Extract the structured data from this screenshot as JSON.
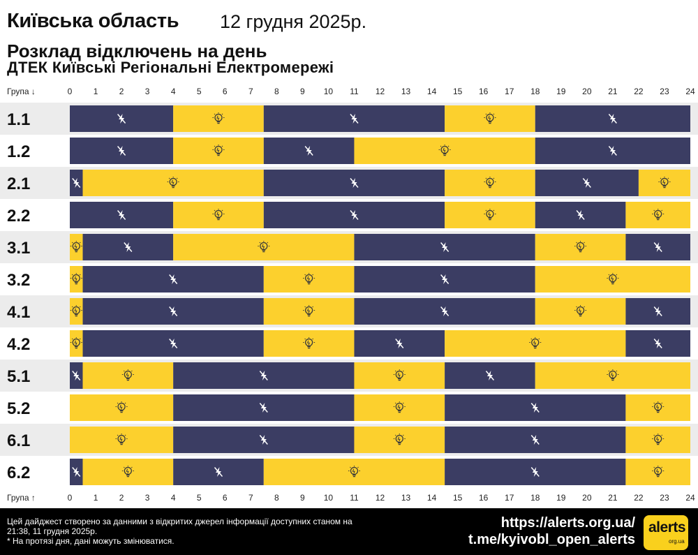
{
  "header": {
    "region": "Київська область",
    "date": "12 грудня 2025р.",
    "subtitle": "Розклад відключень на день",
    "company": "ДТЕК Київські Регіональні Електромережі"
  },
  "colors": {
    "off": "#3b3d63",
    "on": "#fcd02d",
    "row_odd": "#ececec",
    "row_even": "#ffffff"
  },
  "icons": {
    "off": "lightning-off-icon",
    "on": "lightbulb-icon"
  },
  "chart_data": {
    "type": "table",
    "x_range": [
      0,
      24
    ],
    "x_ticks": [
      "0",
      "1",
      "2",
      "3",
      "4",
      "5",
      "6",
      "7",
      "8",
      "9",
      "10",
      "11",
      "12",
      "13",
      "14",
      "15",
      "16",
      "17",
      "18",
      "19",
      "20",
      "21",
      "22",
      "23",
      "24"
    ],
    "top_header": "Група ↓",
    "bottom_header": "Група ↑",
    "groups": [
      {
        "name": "1.1",
        "segments": [
          [
            0,
            4,
            "off"
          ],
          [
            4,
            7.5,
            "on"
          ],
          [
            7.5,
            14.5,
            "off"
          ],
          [
            14.5,
            18,
            "on"
          ],
          [
            18,
            24,
            "off"
          ]
        ]
      },
      {
        "name": "1.2",
        "segments": [
          [
            0,
            4,
            "off"
          ],
          [
            4,
            7.5,
            "on"
          ],
          [
            7.5,
            11,
            "off"
          ],
          [
            11,
            18,
            "on"
          ],
          [
            18,
            24,
            "off"
          ]
        ]
      },
      {
        "name": "2.1",
        "segments": [
          [
            0,
            0.5,
            "off"
          ],
          [
            0.5,
            7.5,
            "on"
          ],
          [
            7.5,
            14.5,
            "off"
          ],
          [
            14.5,
            18,
            "on"
          ],
          [
            18,
            22,
            "off"
          ],
          [
            22,
            24,
            "on"
          ]
        ]
      },
      {
        "name": "2.2",
        "segments": [
          [
            0,
            4,
            "off"
          ],
          [
            4,
            7.5,
            "on"
          ],
          [
            7.5,
            14.5,
            "off"
          ],
          [
            14.5,
            18,
            "on"
          ],
          [
            18,
            21.5,
            "off"
          ],
          [
            21.5,
            24,
            "on"
          ]
        ]
      },
      {
        "name": "3.1",
        "segments": [
          [
            0,
            0.5,
            "on"
          ],
          [
            0.5,
            4,
            "off"
          ],
          [
            4,
            11,
            "on"
          ],
          [
            11,
            18,
            "off"
          ],
          [
            18,
            21.5,
            "on"
          ],
          [
            21.5,
            24,
            "off"
          ]
        ]
      },
      {
        "name": "3.2",
        "segments": [
          [
            0,
            0.5,
            "on"
          ],
          [
            0.5,
            7.5,
            "off"
          ],
          [
            7.5,
            11,
            "on"
          ],
          [
            11,
            18,
            "off"
          ],
          [
            18,
            24,
            "on"
          ]
        ]
      },
      {
        "name": "4.1",
        "segments": [
          [
            0,
            0.5,
            "on"
          ],
          [
            0.5,
            7.5,
            "off"
          ],
          [
            7.5,
            11,
            "on"
          ],
          [
            11,
            18,
            "off"
          ],
          [
            18,
            21.5,
            "on"
          ],
          [
            21.5,
            24,
            "off"
          ]
        ]
      },
      {
        "name": "4.2",
        "segments": [
          [
            0,
            0.5,
            "on"
          ],
          [
            0.5,
            7.5,
            "off"
          ],
          [
            7.5,
            11,
            "on"
          ],
          [
            11,
            14.5,
            "off"
          ],
          [
            14.5,
            21.5,
            "on"
          ],
          [
            21.5,
            24,
            "off"
          ]
        ]
      },
      {
        "name": "5.1",
        "segments": [
          [
            0,
            0.5,
            "off"
          ],
          [
            0.5,
            4,
            "on"
          ],
          [
            4,
            11,
            "off"
          ],
          [
            11,
            14.5,
            "on"
          ],
          [
            14.5,
            18,
            "off"
          ],
          [
            18,
            24,
            "on"
          ]
        ]
      },
      {
        "name": "5.2",
        "segments": [
          [
            0,
            4,
            "on"
          ],
          [
            4,
            11,
            "off"
          ],
          [
            11,
            14.5,
            "on"
          ],
          [
            14.5,
            21.5,
            "off"
          ],
          [
            21.5,
            24,
            "on"
          ]
        ]
      },
      {
        "name": "6.1",
        "segments": [
          [
            0,
            4,
            "on"
          ],
          [
            4,
            11,
            "off"
          ],
          [
            11,
            14.5,
            "on"
          ],
          [
            14.5,
            21.5,
            "off"
          ],
          [
            21.5,
            24,
            "on"
          ]
        ]
      },
      {
        "name": "6.2",
        "segments": [
          [
            0,
            0.5,
            "off"
          ],
          [
            0.5,
            4,
            "on"
          ],
          [
            4,
            7.5,
            "off"
          ],
          [
            7.5,
            14.5,
            "on"
          ],
          [
            14.5,
            21.5,
            "off"
          ],
          [
            21.5,
            24,
            "on"
          ]
        ]
      }
    ]
  },
  "footer": {
    "note_line1": "Цей дайджест створено за данними з відкритих джерел інформації доступних станом на 21:38, 11 грудня 2025р.",
    "note_line2": "* На протязі дня, дані можуть змінюватися.",
    "site_link": "https://alerts.org.ua/",
    "telegram_link": "t.me/kyivobl_open_alerts",
    "logo_word": "alerts",
    "logo_sub": "org.ua"
  }
}
